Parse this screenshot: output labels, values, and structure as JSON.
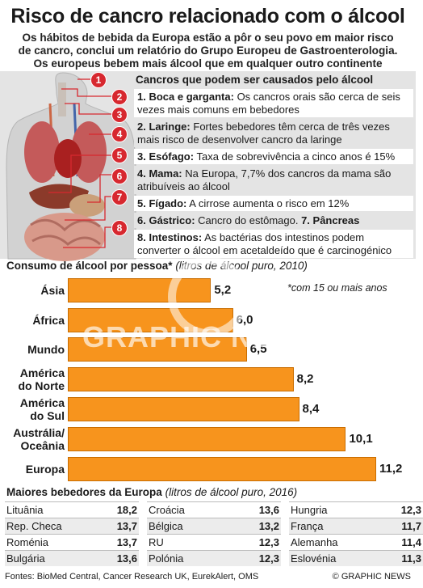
{
  "title": "Risco de cancro relacionado com o álcool",
  "subtitle_lines": [
    "Os hábitos de bebida da Europa estão a pôr o seu povo em maior risco",
    "de cancro, conclui um relatório do Grupo Europeu de Gastroenterologia.",
    "Os europeus bebem mais álcool que em qualquer outro continente"
  ],
  "cancers": {
    "heading": "Cancros que podem ser causados pelo álcool",
    "items": [
      {
        "label": "1. Boca e garganta:",
        "text": "Os cancros orais são cerca de seis vezes mais comuns em bebedores"
      },
      {
        "label": "2. Laringe:",
        "text": "Fortes bebedores têm cerca de três vezes mais risco de desenvolver cancro da laringe"
      },
      {
        "label": "3. Esófago:",
        "text": "Taxa de sobrevivência a cinco anos é 15%"
      },
      {
        "label": "4. Mama:",
        "text": "Na Europa, 7,7% dos cancros da mama são atribuíveis ao álcool"
      },
      {
        "label": "5. Fígado:",
        "text": "A cirrose aumenta o risco em 12%"
      },
      {
        "label": "6. Gástrico:",
        "text": "Cancro do estômago.",
        "label2": "7. Pâncreas"
      },
      {
        "label": "8. Intestinos:",
        "text": "As bactérias dos intestinos podem converter o álcool em acetaldeído que é carcinogénico"
      }
    ],
    "markers": [
      "1",
      "2",
      "3",
      "4",
      "5",
      "6",
      "7",
      "8"
    ]
  },
  "chart_data": {
    "type": "bar",
    "orientation": "horizontal",
    "title": "Consumo de álcool por pessoa*",
    "unit": "(litros de álcool puro, 2010)",
    "note": "*com 15 ou mais anos",
    "categories": [
      "Ásia",
      "África",
      "Mundo",
      "América do Norte",
      "América do Sul",
      "Austrália/ Oceânia",
      "Europa"
    ],
    "value_labels": [
      "5,2",
      "6,0",
      "6,5",
      "8,2",
      "8,4",
      "10,1",
      "11,2"
    ],
    "values": [
      5.2,
      6.0,
      6.5,
      8.2,
      8.4,
      10.1,
      11.2
    ],
    "xlim": [
      0,
      11.2
    ],
    "bar_color": "#f7941d"
  },
  "europe": {
    "title": "Maiores bebedores da Europa",
    "unit": "(litros de álcool puro, 2016)",
    "columns": [
      [
        {
          "n": "Lituânia",
          "v": "18,2"
        },
        {
          "n": "Rep. Checa",
          "v": "13,7"
        },
        {
          "n": "Roménia",
          "v": "13,7"
        },
        {
          "n": "Bulgária",
          "v": "13,6"
        }
      ],
      [
        {
          "n": "Croácia",
          "v": "13,6"
        },
        {
          "n": "Bélgica",
          "v": "13,2"
        },
        {
          "n": "RU",
          "v": "12,3"
        },
        {
          "n": "Polónia",
          "v": "12,3"
        }
      ],
      [
        {
          "n": "Hungria",
          "v": "12,3"
        },
        {
          "n": "França",
          "v": "11,7"
        },
        {
          "n": "Alemanha",
          "v": "11,4"
        },
        {
          "n": "Eslovénia",
          "v": "11,3"
        }
      ]
    ]
  },
  "footer": {
    "sources": "Fontes: BioMed Central, Cancer Research UK, EurekAlert, OMS",
    "copyright": "© GRAPHIC NEWS"
  },
  "watermark": "GRAPHIC NEWS",
  "colors": {
    "accent": "#d7282f",
    "bar": "#f7941d",
    "panel": "#e4e4e4"
  }
}
